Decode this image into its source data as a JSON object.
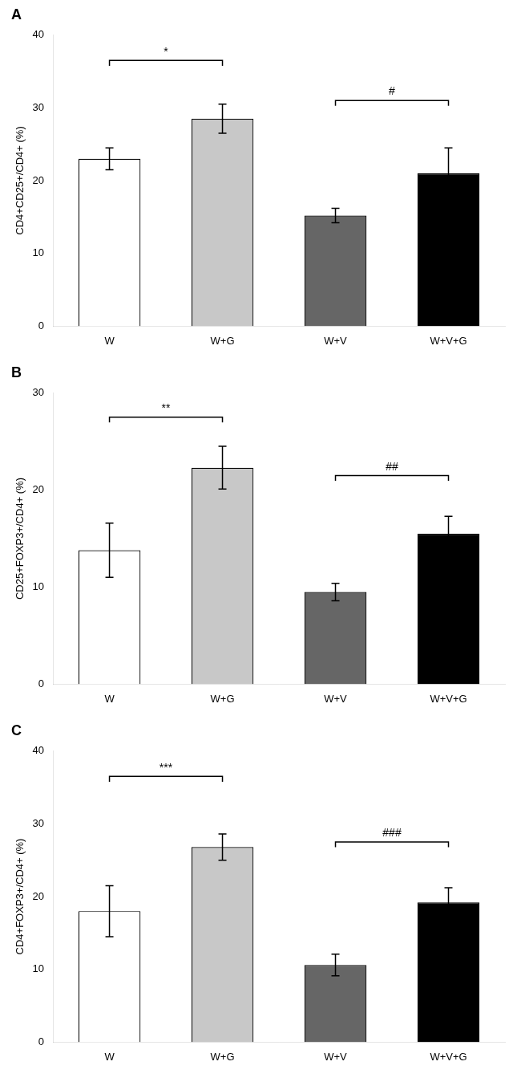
{
  "chart_data": [
    {
      "type": "bar",
      "title": "A",
      "ylabel": "CD4+CD25+/CD4+ (%)",
      "categories": [
        "W",
        "W+G",
        "W+V",
        "W+V+G"
      ],
      "values": [
        23.0,
        28.5,
        15.2,
        21.0
      ],
      "errors": [
        1.5,
        2.0,
        1.0,
        3.5
      ],
      "colors": [
        "#ffffff",
        "#c8c8c8",
        "#666666",
        "#000000"
      ],
      "ylim": [
        0,
        40
      ],
      "yticks": [
        0,
        10,
        20,
        30,
        40
      ],
      "grid": false,
      "annotations": [
        {
          "from": "W",
          "to": "W+G",
          "y": 36.5,
          "text": "*"
        },
        {
          "from": "W+V",
          "to": "W+V+G",
          "y": 31.0,
          "text": "#"
        }
      ]
    },
    {
      "type": "bar",
      "title": "B",
      "ylabel": "CD25+FOXP3+/CD4+ (%)",
      "categories": [
        "W",
        "W+G",
        "W+V",
        "W+V+G"
      ],
      "values": [
        13.8,
        22.3,
        9.5,
        15.5
      ],
      "errors": [
        2.8,
        2.2,
        0.9,
        1.8
      ],
      "colors": [
        "#ffffff",
        "#c8c8c8",
        "#666666",
        "#000000"
      ],
      "ylim": [
        0,
        30
      ],
      "yticks": [
        0,
        10,
        20,
        30
      ],
      "grid": false,
      "annotations": [
        {
          "from": "W",
          "to": "W+G",
          "y": 27.5,
          "text": "**"
        },
        {
          "from": "W+V",
          "to": "W+V+G",
          "y": 21.5,
          "text": "##"
        }
      ]
    },
    {
      "type": "bar",
      "title": "C",
      "ylabel": "CD4+FOXP3+/CD4+ (%)",
      "categories": [
        "W",
        "W+G",
        "W+V",
        "W+V+G"
      ],
      "values": [
        18.0,
        26.8,
        10.6,
        19.2
      ],
      "errors": [
        3.5,
        1.8,
        1.5,
        2.0
      ],
      "colors": [
        "#ffffff",
        "#c8c8c8",
        "#666666",
        "#000000"
      ],
      "ylim": [
        0,
        40
      ],
      "yticks": [
        0,
        10,
        20,
        30,
        40
      ],
      "grid": false,
      "annotations": [
        {
          "from": "W",
          "to": "W+G",
          "y": 36.5,
          "text": "***"
        },
        {
          "from": "W+V",
          "to": "W+V+G",
          "y": 27.5,
          "text": "###"
        }
      ]
    }
  ]
}
